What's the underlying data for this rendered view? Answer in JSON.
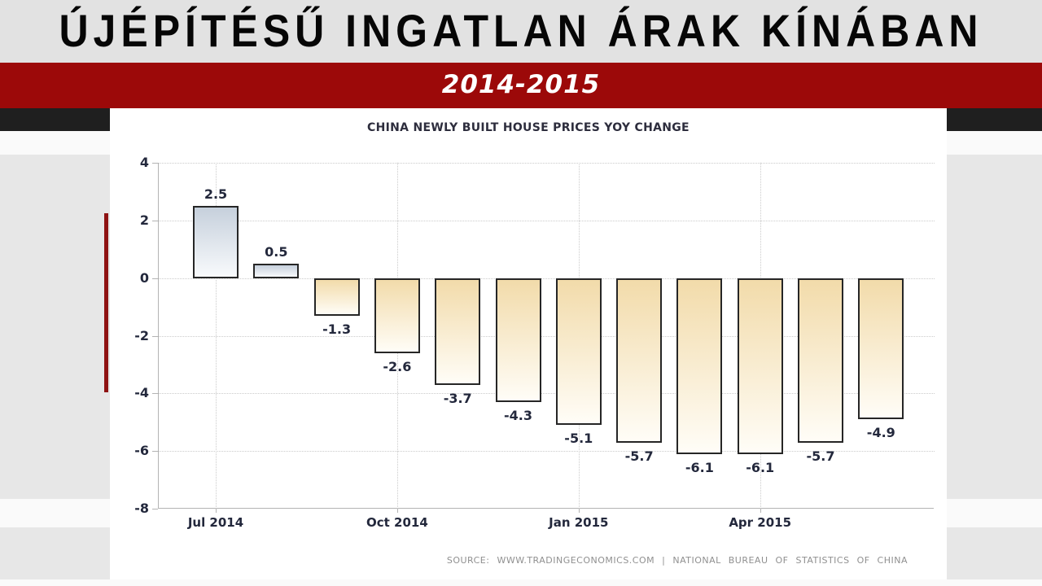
{
  "header": {
    "title": "ÚJÉPÍTÉSŰ INGATLAN ÁRAK KÍNÁBAN",
    "subtitle": "2014-2015"
  },
  "chart": {
    "source": "SOURCE: WWW.TRADINGECONOMICS.COM | NATIONAL BUREAU OF STATISTICS OF CHINA"
  },
  "chart_data": {
    "type": "bar",
    "title": "CHINA NEWLY BUILT HOUSE PRICES YOY CHANGE",
    "values": [
      2.5,
      0.5,
      -1.3,
      -2.6,
      -3.7,
      -4.3,
      -5.1,
      -5.7,
      -6.1,
      -6.1,
      -5.7,
      -4.9
    ],
    "bar_labels": [
      "2.5",
      "0.5",
      "-1.3",
      "-2.6",
      "-3.7",
      "-4.3",
      "-5.1",
      "-5.7",
      "-6.1",
      "-6.1",
      "-5.7",
      "-4.9"
    ],
    "x_ticks": [
      {
        "label": "Jul 2014",
        "bar_index": 0
      },
      {
        "label": "Oct 2014",
        "bar_index": 3
      },
      {
        "label": "Jan 2015",
        "bar_index": 6
      },
      {
        "label": "Apr 2015",
        "bar_index": 9
      }
    ],
    "y_ticks": [
      4,
      2,
      0,
      -2,
      -4,
      -6,
      -8
    ],
    "ylim": [
      -8,
      4
    ],
    "grid": true,
    "legend": null,
    "colors": {
      "positive_bar_top": "#c6d0dc",
      "positive_bar_bottom": "#f8fafc",
      "negative_bar_top": "#f2dbaa",
      "negative_bar_bottom": "#fffdf7",
      "bar_border": "#262626",
      "label_text": "#23283c",
      "banner_red": "#9c0909",
      "accent_red": "#8e1212"
    }
  }
}
